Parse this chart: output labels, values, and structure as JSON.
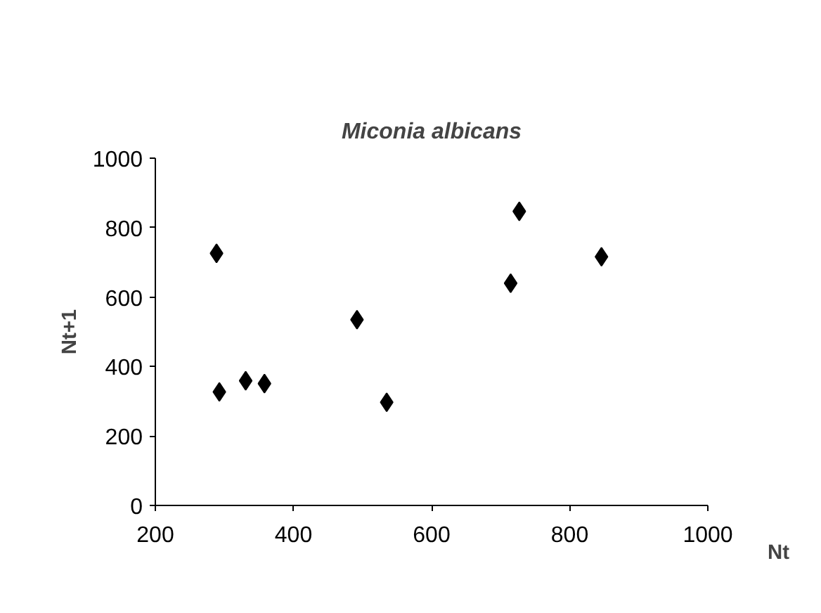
{
  "chart_data": {
    "type": "scatter",
    "title": "Miconia albicans",
    "xlabel": "Nt",
    "ylabel": "Nt+1",
    "x": [
      288.6,
      292.7,
      330.8,
      358,
      492,
      535,
      714.5,
      727,
      846
    ],
    "series": [
      {
        "color": "#000000",
        "values": [
          726,
          327,
          359,
          351,
          535,
          297,
          640,
          847,
          716
        ]
      }
    ],
    "marker": "diamond",
    "grid": false,
    "xlim": [
      200,
      1000
    ],
    "xticks": [
      200,
      400,
      600,
      800,
      1000
    ],
    "ylim": [
      0,
      1000
    ],
    "yticks": [
      0,
      200,
      400,
      600,
      800,
      1000
    ]
  }
}
